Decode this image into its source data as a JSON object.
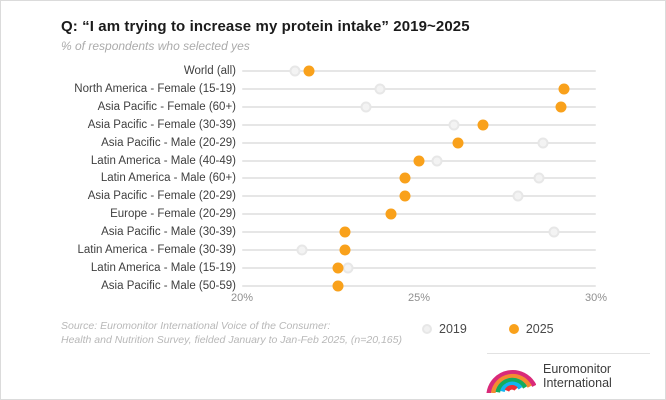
{
  "header": {
    "title": "Q: “I am trying to increase my protein intake” 2019~2025",
    "subtitle": "% of respondents who selected yes"
  },
  "chart_data": {
    "type": "scatter",
    "variant": "horizontal-dot-plot",
    "title": "Q: “I am trying to increase my protein intake” 2019~2025",
    "subtitle": "% of respondents who selected yes",
    "categories": [
      "World (all)",
      "North America - Female (15-19)",
      "Asia Pacific - Female (60+)",
      "Asia Pacific - Female (30-39)",
      "Asia Pacific - Male (20-29)",
      "Latin America - Male (40-49)",
      "Latin America - Male (60+)",
      "Asia Pacific - Female (20-29)",
      "Europe - Female (20-29)",
      "Asia Pacific - Male (30-39)",
      "Latin America - Female (30-39)",
      "Latin America - Male (15-19)",
      "Asia Pacific - Male (50-59)"
    ],
    "series": [
      {
        "name": "2019",
        "color": "#ececec",
        "values": [
          21.5,
          23.9,
          23.5,
          26.0,
          28.5,
          25.5,
          28.4,
          27.8,
          24.2,
          28.8,
          21.7,
          23.0,
          22.7
        ]
      },
      {
        "name": "2025",
        "color": "#f9a11b",
        "values": [
          21.9,
          29.1,
          29.0,
          26.8,
          26.1,
          25.0,
          24.6,
          24.6,
          24.2,
          22.9,
          22.9,
          22.7,
          22.7
        ]
      }
    ],
    "xlim": [
      20,
      30
    ],
    "x_ticks": [
      "20%",
      "25%",
      "30%"
    ],
    "xlabel": "",
    "ylabel": "",
    "grid": "horizontal-row-lines",
    "legend_position": "bottom-center"
  },
  "legend": {
    "items": [
      {
        "label": "2019",
        "color": "#ececec"
      },
      {
        "label": "2025",
        "color": "#f9a11b"
      }
    ]
  },
  "source": {
    "line1": "Source: Euromonitor International Voice of the Consumer:",
    "line2": "Health and Nutrition Survey, fielded January to Jan-Feb 2025, (n=20,165)"
  },
  "branding": {
    "name_line1": "Euromonitor",
    "name_line2": "International"
  },
  "colors": {
    "accent_orange": "#f9a11b",
    "dot_gray": "#ececec",
    "gridline": "#e6e6e6",
    "title_text": "#1b1b1b",
    "muted_text": "#ababab"
  }
}
